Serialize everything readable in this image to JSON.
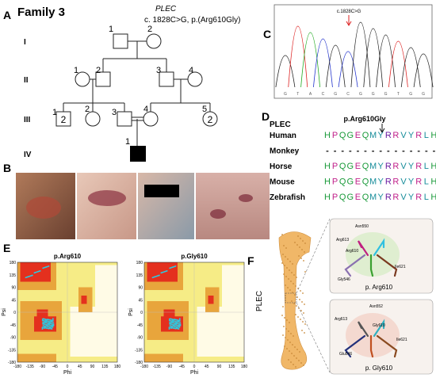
{
  "panel_a": {
    "label": "A",
    "family": "Family 3",
    "gene": "PLEC",
    "variant": "c. 1828C>G, p.(Arg610Gly)",
    "generations": [
      "I",
      "II",
      "III",
      "IV"
    ],
    "individuals": {
      "I": [
        "1",
        "2"
      ],
      "II": [
        "1",
        "2",
        "3",
        "4"
      ],
      "III": [
        "1",
        "2",
        "3",
        "4",
        "5"
      ],
      "IV": [
        "1"
      ]
    },
    "counts": {
      "III_1": "2",
      "III_5": "2"
    }
  },
  "panel_b": {
    "label": "B"
  },
  "panel_c": {
    "label": "C",
    "annotation": "c.1828C>G",
    "bases": [
      "G",
      "T",
      "A",
      "C",
      "G",
      "C",
      "G",
      "G",
      "G",
      "T",
      "G",
      "G"
    ],
    "peak_colors": [
      "#222",
      "#d22",
      "#2a2",
      "#23c",
      "#222",
      "#23c",
      "#222",
      "#222",
      "#222",
      "#d22",
      "#222",
      "#222"
    ]
  },
  "panel_d": {
    "label": "D",
    "gene": "PLEC",
    "mutation": "p.Arg610Gly",
    "residue_colors": [
      "#1a9a3a",
      "#c0208a",
      "#1a9a3a",
      "#1a9a3a",
      "#c0208a",
      "#1a9a3a",
      "#168c9a",
      "#168c9a",
      "#6a1aa0",
      "#c0208a",
      "#168c9a",
      "#168c9a",
      "#c0208a",
      "#168c9a",
      "#1a9a3a"
    ],
    "species": [
      {
        "name": "Human",
        "colored": true,
        "residues": [
          "H",
          "P",
          "Q",
          "G",
          "E",
          "Q",
          "M",
          "Y",
          "R",
          "R",
          "V",
          "Y",
          "R",
          "L",
          "H"
        ]
      },
      {
        "name": "Monkey",
        "colored": false,
        "residues": [
          "-",
          "-",
          "-",
          "-",
          "-",
          "-",
          "-",
          "-",
          "-",
          "-",
          "-",
          "-",
          "-",
          "-",
          "-"
        ]
      },
      {
        "name": "Horse",
        "colored": true,
        "residues": [
          "H",
          "P",
          "Q",
          "G",
          "E",
          "Q",
          "M",
          "Y",
          "R",
          "R",
          "V",
          "Y",
          "R",
          "L",
          "H"
        ]
      },
      {
        "name": "Mouse",
        "colored": true,
        "residues": [
          "H",
          "P",
          "Q",
          "G",
          "E",
          "Q",
          "M",
          "Y",
          "R",
          "R",
          "V",
          "Y",
          "R",
          "L",
          "H"
        ]
      },
      {
        "name": "Zebrafish",
        "colored": true,
        "residues": [
          "H",
          "P",
          "Q",
          "G",
          "E",
          "Q",
          "M",
          "Y",
          "R",
          "R",
          "V",
          "Y",
          "R",
          "L",
          "H"
        ]
      }
    ]
  },
  "panel_e": {
    "label": "E",
    "plots": [
      {
        "title": "p.Arg610"
      },
      {
        "title": "p.Gly610"
      }
    ],
    "xlabel": "Phi",
    "ylabel": "Psi",
    "xticks": [
      -180,
      -135,
      -90,
      -45,
      0,
      45,
      90,
      135,
      180
    ],
    "yticks": [
      -180,
      -135,
      -90,
      -45,
      0,
      45,
      90,
      135,
      180
    ]
  },
  "panel_f": {
    "label": "F",
    "protein": "PLEC",
    "insets": [
      {
        "caption": "p. Arg610",
        "residues": [
          "Asn550",
          "Arg613",
          "Arg610",
          "Ile621",
          "Gly546"
        ]
      },
      {
        "caption": "p. Gly610",
        "residues": [
          "Asn552",
          "Arg613",
          "Gly610",
          "Ile621",
          "Glu546"
        ]
      }
    ]
  }
}
